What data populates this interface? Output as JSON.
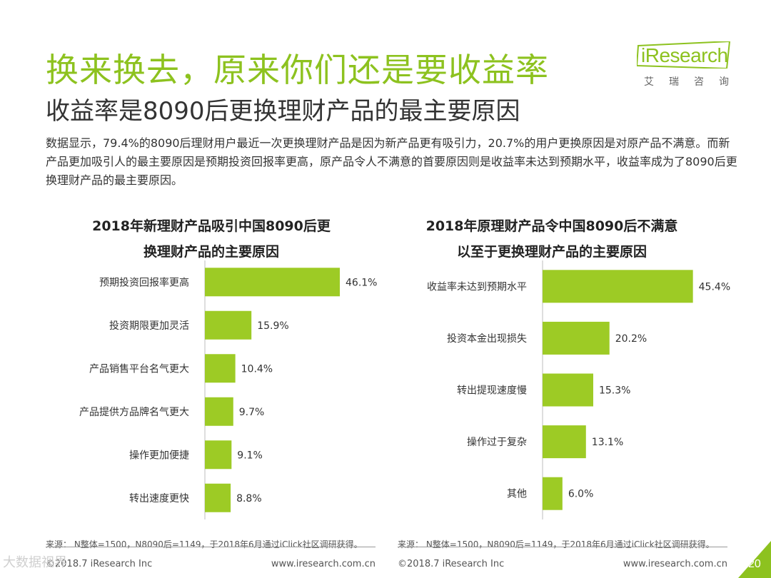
{
  "header": {
    "title": "换来换去，原来你们还是要收益率",
    "subtitle": "收益率是8090后更换理财产品的最主要原因"
  },
  "logo": {
    "text": "iResearch",
    "cn": "艾瑞咨询",
    "color": "#8dc21f"
  },
  "description": "数据显示，79.4%的8090后理财用户最近一次更换理财产品是因为新产品更有吸引力，20.7%的用户更换原因是对原产品不满意。而新产品更加吸引人的最主要原因是预期投资回报率更高，原产品令人不满意的首要原因则是收益率未达到预期水平，收益率成为了8090后更换理财产品的最主要原因。",
  "colors": {
    "accent": "#8dc21f",
    "bar": "#9dcb25"
  },
  "chart_data": [
    {
      "type": "bar",
      "orientation": "horizontal",
      "title_line1": "2018年新理财产品吸引中国8090后更",
      "title_line2": "换理财产品的主要原因",
      "categories": [
        "预期投资回报率更高",
        "投资期限更加灵活",
        "产品销售平台名气更大",
        "产品提供方品牌名气更大",
        "操作更加便捷",
        "转出速度更快"
      ],
      "values": [
        46.1,
        15.9,
        10.4,
        9.7,
        9.1,
        8.8
      ],
      "labels": [
        "46.1%",
        "15.9%",
        "10.4%",
        "9.7%",
        "9.1%",
        "8.8%"
      ],
      "xlim": [
        0,
        50
      ],
      "source": "来源： N整体=1500，N8090后=1149，于2018年6月通过iClick社区调研获得。"
    },
    {
      "type": "bar",
      "orientation": "horizontal",
      "title_line1": "2018年原理财产品令中国8090后不满意",
      "title_line2": "以至于更换理财产品的主要原因",
      "categories": [
        "收益率未达到预期水平",
        "投资本金出现损失",
        "转出提现速度慢",
        "操作过于复杂",
        "其他"
      ],
      "values": [
        45.4,
        20.2,
        15.3,
        13.1,
        6.0
      ],
      "labels": [
        "45.4%",
        "20.2%",
        "15.3%",
        "13.1%",
        "6.0%"
      ],
      "xlim": [
        0,
        50
      ],
      "source": "来源： N整体=1500，N8090后=1149，于2018年6月通过iClick社区调研获得。"
    }
  ],
  "footer": {
    "left_copyright": "©2018.7 iResearch Inc",
    "left_url": "www.iresearch.com.cn",
    "right_copyright": "©2018.7 iResearch Inc",
    "right_url": "www.iresearch.com.cn",
    "page_number": "20"
  },
  "watermark": "大数据视界"
}
